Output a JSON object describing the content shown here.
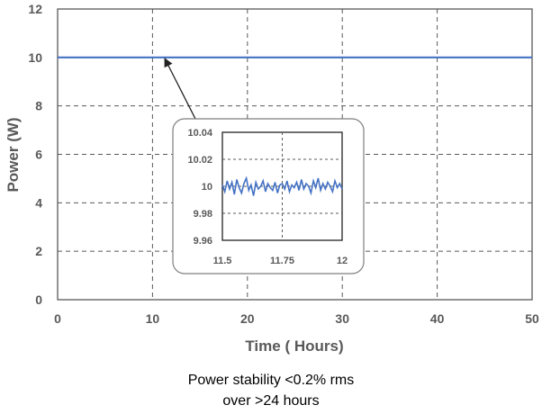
{
  "chart_data": {
    "type": "line",
    "xlabel": "Time ( Hours)",
    "ylabel": "Power (W)",
    "xlim": [
      0,
      50
    ],
    "ylim": [
      0,
      12
    ],
    "xticks": [
      "0",
      "10",
      "20",
      "30",
      "40",
      "50"
    ],
    "yticks": [
      "0",
      "2",
      "4",
      "6",
      "8",
      "10",
      "12"
    ],
    "grid": "dashed",
    "line_color": "#4472C4",
    "series": [
      {
        "x": [
          0,
          5,
          10,
          15,
          20,
          25,
          30,
          35,
          40,
          45,
          50
        ],
        "values": [
          10.0,
          10.0,
          10.0,
          10.0,
          10.0,
          10.0,
          10.0,
          10.0,
          10.0,
          10.0,
          10.0
        ]
      }
    ],
    "inset": {
      "xlim": [
        11.5,
        12
      ],
      "ylim": [
        9.96,
        10.04
      ],
      "xticks": [
        "11.5",
        "11.75",
        "12"
      ],
      "yticks": [
        "9.96",
        "9.98",
        "10",
        "10.02",
        "10.04"
      ],
      "series": [
        {
          "x": [
            11.5,
            11.51,
            11.52,
            11.53,
            11.54,
            11.55,
            11.56,
            11.57,
            11.58,
            11.59,
            11.6,
            11.61,
            11.62,
            11.63,
            11.64,
            11.65,
            11.66,
            11.67,
            11.68,
            11.69,
            11.7,
            11.71,
            11.72,
            11.73,
            11.74,
            11.75,
            11.76,
            11.77,
            11.78,
            11.79,
            11.8,
            11.81,
            11.82,
            11.83,
            11.84,
            11.85,
            11.86,
            11.87,
            11.88,
            11.89,
            11.9,
            11.91,
            11.92,
            11.93,
            11.94,
            11.95,
            11.96,
            11.97,
            11.98,
            11.99,
            12.0
          ],
          "values": [
            10.001,
            9.996,
            10.004,
            9.998,
            10.003,
            9.994,
            10.005,
            9.999,
            9.995,
            10.002,
            10.006,
            9.997,
            10.001,
            9.993,
            10.003,
            9.998,
            10.0,
            10.004,
            9.996,
            10.002,
            9.999,
            9.997,
            10.003,
            9.995,
            10.001,
            10.002,
            9.998,
            10.004,
            9.996,
            10.001,
            9.999,
            10.003,
            9.997,
            10.005,
            9.998,
            10.002,
            10.0,
            9.995,
            10.004,
            9.999,
            10.006,
            9.997,
            10.002,
            9.998,
            10.003,
            10.0,
            9.996,
            10.004,
            9.999,
            10.002,
            9.998
          ]
        }
      ]
    }
  },
  "caption": {
    "line1": "Power stability <0.2% rms",
    "line2": "over >24 hours"
  }
}
